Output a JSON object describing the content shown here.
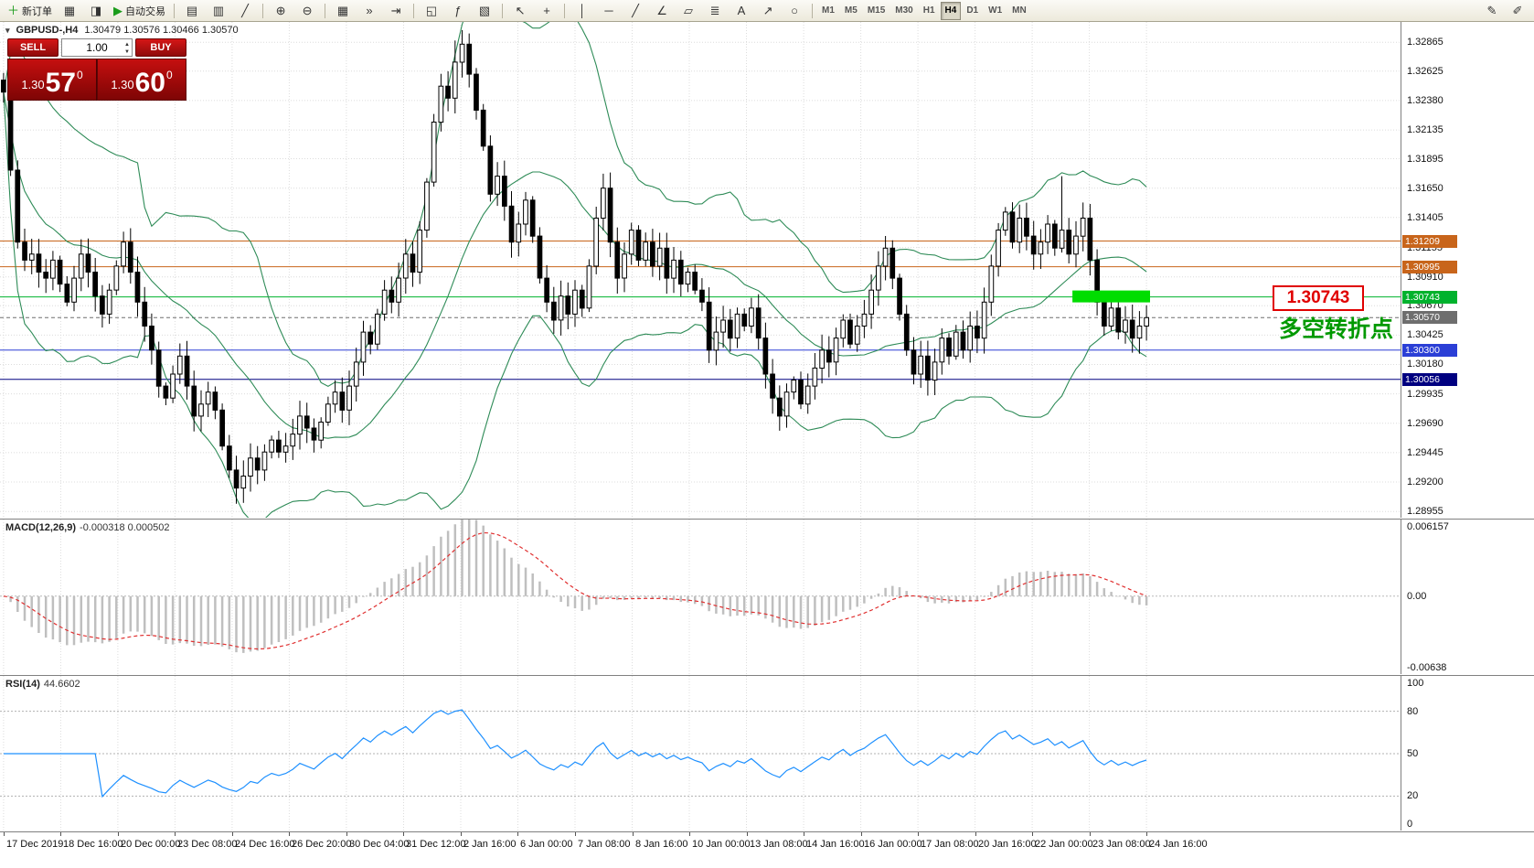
{
  "toolbar": {
    "groups": [
      {
        "items": [
          {
            "name": "new-order-button",
            "glyph": "＋",
            "color": "#1a9c1a",
            "label": "新订单"
          },
          {
            "name": "chart-profile-icon",
            "glyph": "▦"
          },
          {
            "name": "accounts-icon",
            "glyph": "◨"
          },
          {
            "name": "autotrade-button",
            "glyph": "▶",
            "color": "#1a9c1a",
            "label": "自动交易"
          }
        ]
      },
      {
        "items": [
          {
            "name": "bar-chart-icon",
            "glyph": "▤"
          },
          {
            "name": "candlestick-chart-icon",
            "glyph": "▥"
          },
          {
            "name": "line-chart-icon",
            "glyph": "╱"
          }
        ]
      },
      {
        "items": [
          {
            "name": "zoom-in-icon",
            "glyph": "⊕"
          },
          {
            "name": "zoom-out-icon",
            "glyph": "⊖"
          }
        ]
      },
      {
        "items": [
          {
            "name": "tile-windows-icon",
            "glyph": "▦"
          },
          {
            "name": "auto-scroll-icon",
            "glyph": "»"
          },
          {
            "name": "chart-shift-icon",
            "glyph": "⇥"
          }
        ]
      },
      {
        "items": [
          {
            "name": "new-chart-icon",
            "glyph": "◱"
          },
          {
            "name": "indicators-icon",
            "glyph": "ƒ"
          },
          {
            "name": "templates-icon",
            "glyph": "▧"
          }
        ]
      },
      {
        "items": [
          {
            "name": "cursor-icon",
            "glyph": "↖"
          },
          {
            "name": "crosshair-icon",
            "glyph": "+"
          }
        ]
      },
      {
        "items": [
          {
            "name": "vertical-line-icon",
            "glyph": "│"
          },
          {
            "name": "horizontal-line-icon",
            "glyph": "─"
          },
          {
            "name": "trendline-icon",
            "glyph": "╱"
          },
          {
            "name": "angle-trend-icon",
            "glyph": "∠"
          },
          {
            "name": "channel-icon",
            "glyph": "▱"
          },
          {
            "name": "fibonacci-icon",
            "glyph": "≣"
          },
          {
            "name": "text-label-icon",
            "glyph": "A"
          },
          {
            "name": "arrow-tool-icon",
            "glyph": "↗"
          },
          {
            "name": "shapes-icon",
            "glyph": "○"
          }
        ]
      }
    ],
    "timeframes": {
      "items": [
        "M1",
        "M5",
        "M15",
        "M30",
        "H1",
        "H4",
        "D1",
        "W1",
        "MN"
      ],
      "active": "H4"
    },
    "right": [
      {
        "name": "edit-pencil-icon",
        "glyph": "✎"
      },
      {
        "name": "draw-tools-icon",
        "glyph": "✐"
      }
    ]
  },
  "symbol_header": {
    "collapse_glyph": "▾",
    "title": "GBPUSD-,H4",
    "ohlc": "1.30479 1.30576 1.30466 1.30570"
  },
  "trade_panel": {
    "sell_label": "SELL",
    "buy_label": "BUY",
    "volume": "1.00",
    "sell": {
      "big": "1.30",
      "pips": "57",
      "sup": "0"
    },
    "buy": {
      "big": "1.30",
      "pips": "60",
      "sup": "0"
    }
  },
  "annotations": {
    "price_flag": "1.30743",
    "note_cn": "多空转折点",
    "flag_color": "#e00000",
    "note_color": "#009900"
  },
  "price_axis": {
    "ticks": [
      "1.32865",
      "1.32625",
      "1.32380",
      "1.32135",
      "1.31895",
      "1.31650",
      "1.31405",
      "1.31155",
      "1.30910",
      "1.30670",
      "1.30425",
      "1.30180",
      "1.29935",
      "1.29690",
      "1.29445",
      "1.29200",
      "1.28955"
    ]
  },
  "levels": [
    {
      "price": 1.31209,
      "label": "1.31209",
      "color": "#C8651B",
      "dashed": false
    },
    {
      "price": 1.30995,
      "label": "1.30995",
      "color": "#C8651B",
      "dashed": false
    },
    {
      "price": 1.30743,
      "label": "1.30743",
      "color": "#00B22D",
      "dashed": false
    },
    {
      "price": 1.3057,
      "label": "1.30570",
      "color": "#6e6e6e",
      "dashed": true
    },
    {
      "price": 1.303,
      "label": "1.30300",
      "color": "#2B3FD6",
      "dashed": false
    },
    {
      "price": 1.30056,
      "label": "1.30056",
      "color": "#000080",
      "dashed": false
    }
  ],
  "macd_panel": {
    "title": "MACD(12,26,9)",
    "values": "-0.000318 0.000502",
    "axis": [
      {
        "v": 0.006157,
        "label": "0.006157"
      },
      {
        "v": 0,
        "label": "0.00"
      },
      {
        "v": -0.00638,
        "label": "-0.00638"
      }
    ]
  },
  "rsi_panel": {
    "title": "RSI(14)",
    "value": "44.6602",
    "levels": [
      80,
      50,
      20
    ],
    "axis": [
      {
        "v": 100,
        "label": "100"
      },
      {
        "v": 80,
        "label": "80"
      },
      {
        "v": 50,
        "label": "50"
      },
      {
        "v": 20,
        "label": "20"
      },
      {
        "v": 0,
        "label": "0"
      }
    ]
  },
  "time_axis": {
    "labels": [
      "17 Dec 2019",
      "18 Dec 16:00",
      "20 Dec 00:00",
      "23 Dec 08:00",
      "24 Dec 16:00",
      "26 Dec 20:00",
      "30 Dec 04:00",
      "31 Dec 12:00",
      "2 Jan 16:00",
      "6 Jan 00:00",
      "7 Jan 08:00",
      "8 Jan 16:00",
      "10 Jan 00:00",
      "13 Jan 08:00",
      "14 Jan 16:00",
      "16 Jan 00:00",
      "17 Jan 08:00",
      "20 Jan 16:00",
      "22 Jan 00:00",
      "23 Jan 08:00",
      "24 Jan 16:00"
    ]
  },
  "chart_data": {
    "type": "candlestick",
    "symbol": "GBPUSD",
    "period": "H4",
    "price_range": [
      1.28903,
      1.33035
    ],
    "y_tick_step": 0.00245,
    "first_open": 1.3255,
    "closes": [
      1.3245,
      1.318,
      1.312,
      1.3105,
      1.311,
      1.3095,
      1.309,
      1.3105,
      1.3085,
      1.307,
      1.309,
      1.311,
      1.3095,
      1.3075,
      1.306,
      1.308,
      1.31,
      1.312,
      1.3095,
      1.307,
      1.305,
      1.303,
      1.3,
      1.299,
      1.301,
      1.3025,
      1.3,
      1.2975,
      1.2985,
      1.2995,
      1.298,
      1.295,
      1.293,
      1.2915,
      1.2925,
      1.294,
      1.293,
      1.2945,
      1.2955,
      1.2945,
      1.295,
      1.296,
      1.2975,
      1.2965,
      1.2955,
      1.297,
      1.2985,
      1.2995,
      1.298,
      1.3,
      1.302,
      1.3045,
      1.3035,
      1.306,
      1.308,
      1.307,
      1.309,
      1.311,
      1.3095,
      1.313,
      1.317,
      1.322,
      1.325,
      1.324,
      1.327,
      1.3285,
      1.326,
      1.323,
      1.32,
      1.316,
      1.3175,
      1.315,
      1.312,
      1.3135,
      1.3155,
      1.3125,
      1.309,
      1.307,
      1.3055,
      1.3075,
      1.306,
      1.308,
      1.3065,
      1.31,
      1.314,
      1.3165,
      1.312,
      1.309,
      1.311,
      1.313,
      1.3105,
      1.312,
      1.31,
      1.3115,
      1.309,
      1.3105,
      1.3085,
      1.3095,
      1.308,
      1.307,
      1.303,
      1.3045,
      1.3055,
      1.304,
      1.306,
      1.305,
      1.3065,
      1.304,
      1.301,
      1.299,
      1.2975,
      1.2995,
      1.3005,
      1.2985,
      1.3,
      1.3015,
      1.303,
      1.302,
      1.304,
      1.3055,
      1.3035,
      1.305,
      1.306,
      1.308,
      1.31,
      1.3115,
      1.309,
      1.306,
      1.303,
      1.301,
      1.3025,
      1.3005,
      1.302,
      1.304,
      1.3025,
      1.3045,
      1.303,
      1.305,
      1.304,
      1.307,
      1.31,
      1.313,
      1.3145,
      1.312,
      1.314,
      1.3125,
      1.311,
      1.312,
      1.3135,
      1.3115,
      1.313,
      1.311,
      1.3125,
      1.314,
      1.3105,
      1.307,
      1.305,
      1.3065,
      1.3045,
      1.3055,
      1.304,
      1.305,
      1.3057
    ],
    "extra_highs": {
      "64": 1.3288,
      "85": 1.317,
      "150": 1.3175
    },
    "extra_lows": {
      "33": 1.2902
    },
    "bollinger": {
      "period": 20,
      "deviation": 2
    },
    "macd": {
      "fast": 12,
      "slow": 26,
      "signal": 9,
      "range": [
        -0.007,
        0.0068
      ]
    },
    "rsi": {
      "period": 14,
      "range": [
        -5,
        105
      ]
    },
    "highlight": {
      "price": 1.30743,
      "from_index": 152,
      "to_index": 163
    },
    "colors": {
      "bollinger": "#2E8B57",
      "candle_up": "#ffffff",
      "candle_down": "#000000",
      "candle_stroke": "#000000",
      "macd_hist": "#bfbfbf",
      "macd_signal": "#e03030",
      "rsi_line": "#1e90ff",
      "highlight": "#00dd00",
      "grid": "#dcdcdc"
    }
  }
}
